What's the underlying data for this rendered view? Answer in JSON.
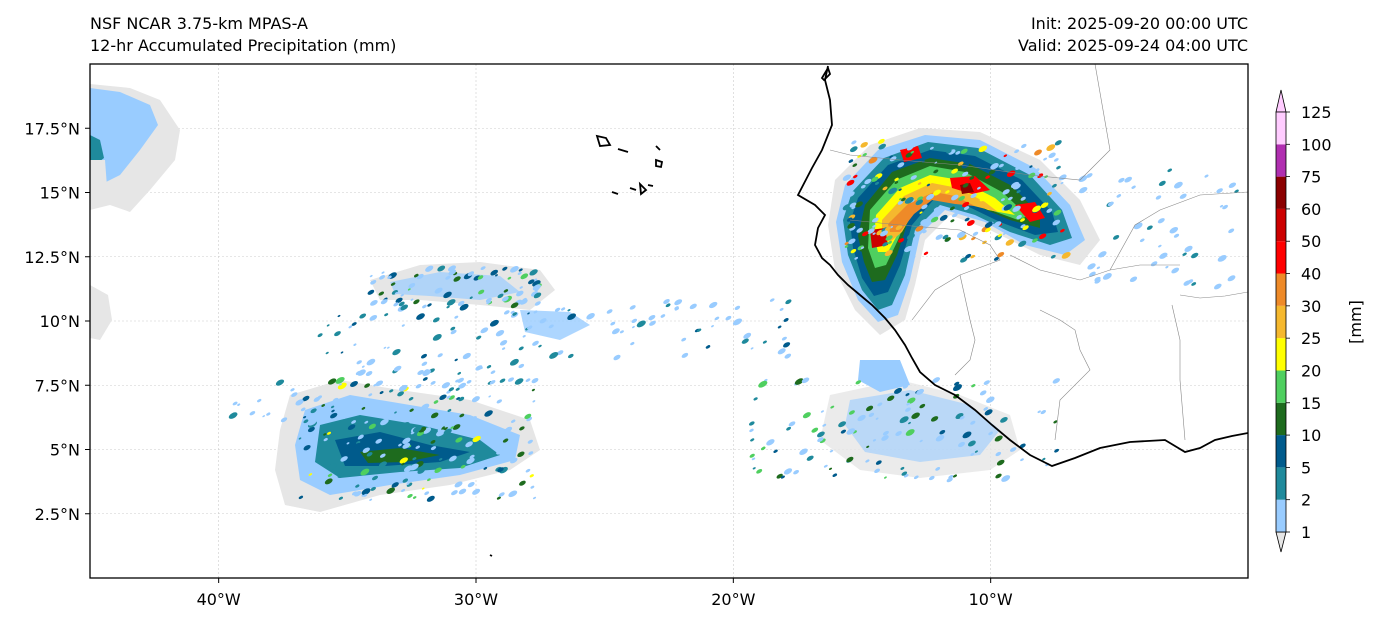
{
  "header": {
    "model": "NSF NCAR 3.75-km MPAS-A",
    "field": "12-hr Accumulated Precipitation (mm)",
    "init": "Init: 2025-09-20 00:00 UTC",
    "valid": "Valid: 2025-09-24 04:00 UTC"
  },
  "map": {
    "lon_range": [
      -45,
      0
    ],
    "lat_range": [
      0,
      20
    ],
    "lon_ticks": [
      {
        "value": -40,
        "label": "40°W"
      },
      {
        "value": -30,
        "label": "30°W"
      },
      {
        "value": -20,
        "label": "20°W"
      },
      {
        "value": -10,
        "label": "10°W"
      }
    ],
    "lat_ticks": [
      {
        "value": 2.5,
        "label": "2.5°N"
      },
      {
        "value": 5,
        "label": "5°N"
      },
      {
        "value": 7.5,
        "label": "7.5°N"
      },
      {
        "value": 10,
        "label": "10°N"
      },
      {
        "value": 12.5,
        "label": "12.5°N"
      },
      {
        "value": 15,
        "label": "15°N"
      },
      {
        "value": 17.5,
        "label": "17.5°N"
      }
    ],
    "gridlines": true
  },
  "colorbar": {
    "unit": "[mm]",
    "levels": [
      "1",
      "2",
      "5",
      "10",
      "15",
      "20",
      "25",
      "30",
      "40",
      "50",
      "60",
      "75",
      "100",
      "125"
    ],
    "colors": [
      "#e6e6e6",
      "#99ccff",
      "#1f8a9c",
      "#005b8c",
      "#1e6b1e",
      "#4fcf5f",
      "#ffff00",
      "#f5b82e",
      "#ee8a28",
      "#ff0000",
      "#cc0000",
      "#8b0000",
      "#b02fb0",
      "#ffccff"
    ]
  }
}
